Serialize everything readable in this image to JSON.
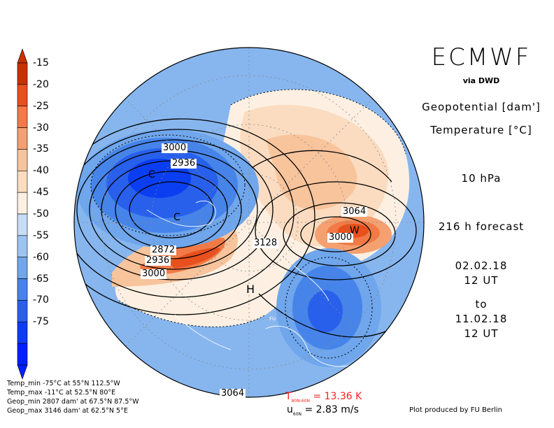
{
  "header": {
    "brand": "ECMWF",
    "source": "via DWD",
    "variable_1": "Geopotential [dam']",
    "variable_2": "Temperature [°C]",
    "level": "10 hPa",
    "forecast": "216 h forecast",
    "init_date": "02.02.18",
    "init_time": "12 UT",
    "to": "to",
    "valid_date": "11.02.18",
    "valid_time": "12 UT"
  },
  "colorbar": {
    "labels": [
      "-15",
      "-20",
      "-25",
      "-30",
      "-35",
      "-40",
      "-45",
      "-50",
      "-55",
      "-60",
      "-65",
      "-70",
      "-75"
    ],
    "colors": [
      "#c83200",
      "#e8501e",
      "#f27a46",
      "#f5a070",
      "#f8c49c",
      "#fbdcc0",
      "#fdf0e2",
      "#c6ddf8",
      "#9cc4f2",
      "#6fa6ec",
      "#4684ea",
      "#2860ec",
      "#0a3ef0",
      "#0020ff"
    ]
  },
  "map": {
    "contour_labels": [
      "3000",
      "2936",
      "2872",
      "2936",
      "3000",
      "3128",
      "3064",
      "3000",
      "3064"
    ],
    "markers": [
      "C",
      "C",
      "W",
      "H",
      "FU"
    ],
    "colors": {
      "warm": "#e8501e",
      "cold": "#2860ec",
      "neutral": "#c6ddf8"
    }
  },
  "stats": {
    "temp_min": "Temp_min -75°C at 55°N 112.5°W",
    "temp_max": "Temp_max -11°C at 52.5°N 80°E",
    "geop_min": "Geop_min 2807 dam' at 67.5°N 87.5°W",
    "geop_max": "Geop_max 3146 dam' at 62.5°N 5°E"
  },
  "footer": {
    "t_symbol": "T",
    "t_sub": "80N-60N",
    "t_value": "= 13.36 K",
    "u_symbol": "u",
    "u_sub": "60N",
    "u_value": "= 2.83 m/s",
    "credit": "Plot produced by FU Berlin"
  }
}
